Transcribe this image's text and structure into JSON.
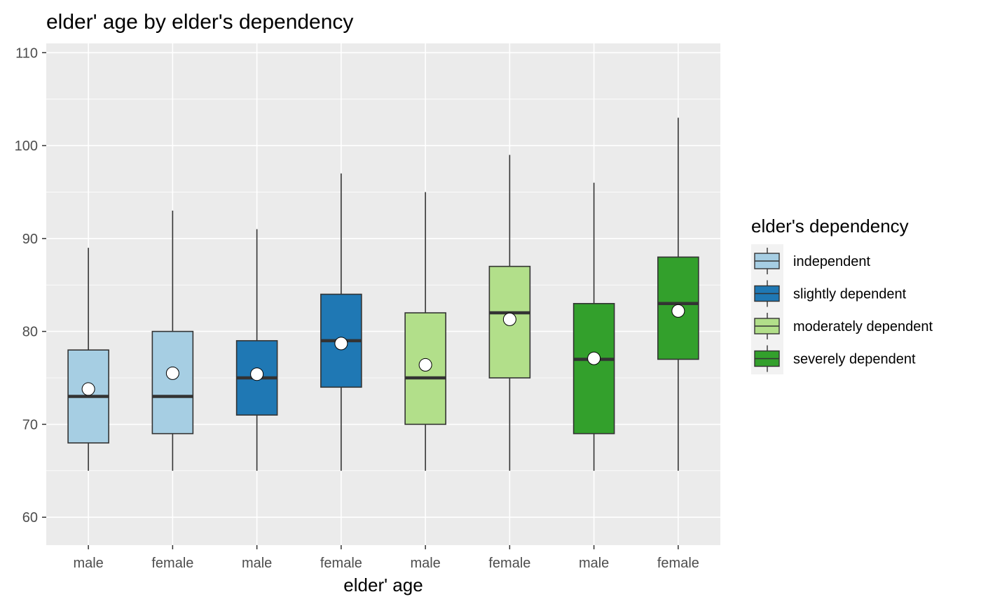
{
  "chart_data": {
    "type": "box",
    "title": "elder' age by elder's dependency",
    "xlabel": "elder' age",
    "ylabel": "",
    "ylim": [
      57,
      111
    ],
    "yticks": [
      60,
      70,
      80,
      90,
      100,
      110
    ],
    "grid": true,
    "legend": {
      "title": "elder's dependency",
      "placement": "right",
      "entries": [
        {
          "label": "independent",
          "color": "#a6cee3"
        },
        {
          "label": "slightly dependent",
          "color": "#1f78b4"
        },
        {
          "label": "moderately dependent",
          "color": "#b2df8a"
        },
        {
          "label": "severely dependent",
          "color": "#33a02c"
        }
      ]
    },
    "categories": [
      "male",
      "female",
      "male",
      "female",
      "male",
      "female",
      "male",
      "female"
    ],
    "boxes": [
      {
        "x": "male",
        "group": "independent",
        "color": "#a6cee3",
        "min": 65,
        "q1": 68,
        "median": 73,
        "q3": 78,
        "max": 89,
        "mean": 73.8
      },
      {
        "x": "female",
        "group": "independent",
        "color": "#a6cee3",
        "min": 65,
        "q1": 69,
        "median": 73,
        "q3": 80,
        "max": 93,
        "mean": 75.5
      },
      {
        "x": "male",
        "group": "slightly dependent",
        "color": "#1f78b4",
        "min": 65,
        "q1": 71,
        "median": 75,
        "q3": 79,
        "max": 91,
        "mean": 75.4
      },
      {
        "x": "female",
        "group": "slightly dependent",
        "color": "#1f78b4",
        "min": 65,
        "q1": 74,
        "median": 79,
        "q3": 84,
        "max": 97,
        "mean": 78.7
      },
      {
        "x": "male",
        "group": "moderately dependent",
        "color": "#b2df8a",
        "min": 65,
        "q1": 70,
        "median": 75,
        "q3": 82,
        "max": 95,
        "mean": 76.4
      },
      {
        "x": "female",
        "group": "moderately dependent",
        "color": "#b2df8a",
        "min": 65,
        "q1": 75,
        "median": 82,
        "q3": 87,
        "max": 99,
        "mean": 81.3
      },
      {
        "x": "male",
        "group": "severely dependent",
        "color": "#33a02c",
        "min": 65,
        "q1": 69,
        "median": 77,
        "q3": 83,
        "max": 96,
        "mean": 77.1
      },
      {
        "x": "female",
        "group": "severely dependent",
        "color": "#33a02c",
        "min": 65,
        "q1": 77,
        "median": 83,
        "q3": 88,
        "max": 103,
        "mean": 82.2
      }
    ]
  }
}
